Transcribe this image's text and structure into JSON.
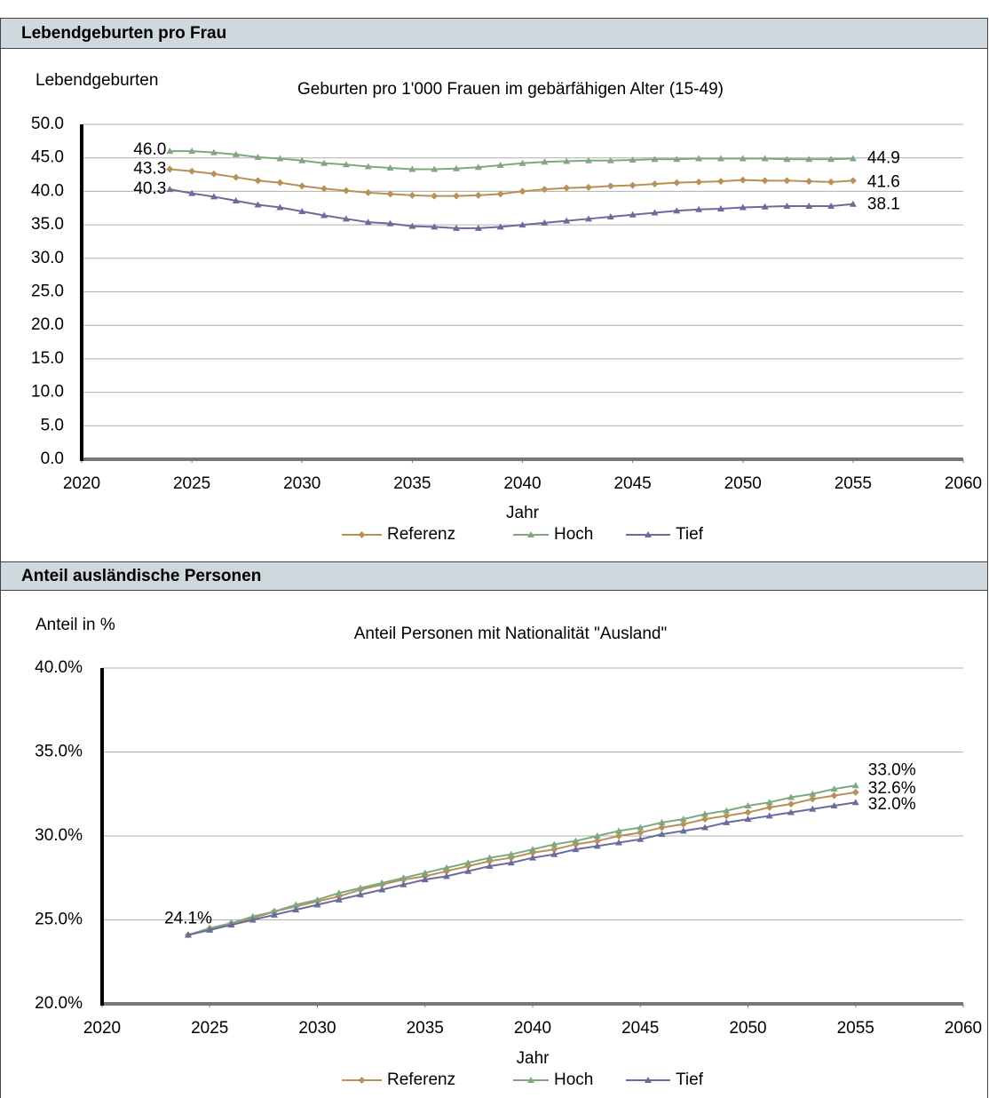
{
  "headers": [
    "Lebendgeburten pro Frau",
    "Anteil ausländische Personen"
  ],
  "chart_data": [
    {
      "type": "line",
      "title": "Geburten pro 1'000 Frauen im gebärfähigen Alter (15-49)",
      "y_label": "Lebendgeburten",
      "x_label": "Jahr",
      "x": [
        2024,
        2025,
        2026,
        2027,
        2028,
        2029,
        2030,
        2031,
        2032,
        2033,
        2034,
        2035,
        2036,
        2037,
        2038,
        2039,
        2040,
        2041,
        2042,
        2043,
        2044,
        2045,
        2046,
        2047,
        2048,
        2049,
        2050,
        2051,
        2052,
        2053,
        2054,
        2055
      ],
      "xlim": [
        2020,
        2060
      ],
      "xticks": [
        2020,
        2025,
        2030,
        2035,
        2040,
        2045,
        2050,
        2055,
        2060
      ],
      "ylim": [
        0,
        50
      ],
      "yticks": [
        {
          "value": 0,
          "label": "0.0"
        },
        {
          "value": 5,
          "label": "5.0"
        },
        {
          "value": 10,
          "label": "10.0"
        },
        {
          "value": 15,
          "label": "15.0"
        },
        {
          "value": 20,
          "label": "20.0"
        },
        {
          "value": 25,
          "label": "25.0"
        },
        {
          "value": 30,
          "label": "30.0"
        },
        {
          "value": 35,
          "label": "35.0"
        },
        {
          "value": 40,
          "label": "40.0"
        },
        {
          "value": 45,
          "label": "45.0"
        },
        {
          "value": 50,
          "label": "50.0"
        }
      ],
      "grid": true,
      "series": [
        {
          "name": "Referenz",
          "color": "#b8915a",
          "marker": "diamond",
          "values": [
            43.3,
            43.0,
            42.6,
            42.1,
            41.6,
            41.3,
            40.8,
            40.4,
            40.1,
            39.8,
            39.6,
            39.4,
            39.3,
            39.3,
            39.4,
            39.6,
            40.0,
            40.3,
            40.5,
            40.6,
            40.8,
            40.9,
            41.1,
            41.3,
            41.4,
            41.5,
            41.7,
            41.6,
            41.6,
            41.5,
            41.4,
            41.6
          ],
          "value_labels": [
            "43.3",
            null,
            null,
            null,
            null,
            null,
            null,
            null,
            null,
            null,
            null,
            null,
            null,
            null,
            null,
            null,
            null,
            null,
            null,
            null,
            null,
            null,
            null,
            null,
            null,
            null,
            null,
            null,
            null,
            null,
            null,
            "41.6"
          ]
        },
        {
          "name": "Hoch",
          "color": "#7fa87f",
          "marker": "triangle",
          "values": [
            46.0,
            46.0,
            45.8,
            45.5,
            45.1,
            44.9,
            44.6,
            44.2,
            44.0,
            43.7,
            43.5,
            43.3,
            43.3,
            43.4,
            43.6,
            43.9,
            44.2,
            44.4,
            44.5,
            44.6,
            44.6,
            44.7,
            44.8,
            44.8,
            44.9,
            44.9,
            44.9,
            44.9,
            44.8,
            44.8,
            44.8,
            44.9
          ],
          "value_labels": [
            "46.0",
            null,
            null,
            null,
            null,
            null,
            null,
            null,
            null,
            null,
            null,
            null,
            null,
            null,
            null,
            null,
            null,
            null,
            null,
            null,
            null,
            null,
            null,
            null,
            null,
            null,
            null,
            null,
            null,
            null,
            null,
            "44.9"
          ]
        },
        {
          "name": "Tief",
          "color": "#6b6b9c",
          "marker": "triangle",
          "values": [
            40.3,
            39.7,
            39.2,
            38.6,
            38.0,
            37.6,
            37.0,
            36.4,
            35.9,
            35.4,
            35.2,
            34.8,
            34.7,
            34.5,
            34.5,
            34.7,
            35.0,
            35.3,
            35.6,
            35.9,
            36.2,
            36.5,
            36.8,
            37.1,
            37.3,
            37.4,
            37.6,
            37.7,
            37.8,
            37.8,
            37.8,
            38.1
          ],
          "value_labels": [
            "40.3",
            null,
            null,
            null,
            null,
            null,
            null,
            null,
            null,
            null,
            null,
            null,
            null,
            null,
            null,
            null,
            null,
            null,
            null,
            null,
            null,
            null,
            null,
            null,
            null,
            null,
            null,
            null,
            null,
            null,
            null,
            "38.1"
          ]
        }
      ]
    },
    {
      "type": "line",
      "title": "Anteil Personen mit Nationalität \"Ausland\"",
      "y_label": "Anteil in %",
      "x_label": "Jahr",
      "x": [
        2024,
        2025,
        2026,
        2027,
        2028,
        2029,
        2030,
        2031,
        2032,
        2033,
        2034,
        2035,
        2036,
        2037,
        2038,
        2039,
        2040,
        2041,
        2042,
        2043,
        2044,
        2045,
        2046,
        2047,
        2048,
        2049,
        2050,
        2051,
        2052,
        2053,
        2054,
        2055
      ],
      "xlim": [
        2020,
        2060
      ],
      "xticks": [
        2020,
        2025,
        2030,
        2035,
        2040,
        2045,
        2050,
        2055,
        2060
      ],
      "ylim": [
        20,
        40
      ],
      "yticks": [
        {
          "value": 20,
          "label": "20.0%"
        },
        {
          "value": 25,
          "label": "25.0%"
        },
        {
          "value": 30,
          "label": "30.0%"
        },
        {
          "value": 35,
          "label": "35.0%"
        },
        {
          "value": 40,
          "label": "40.0%"
        }
      ],
      "grid": true,
      "series": [
        {
          "name": "Referenz",
          "color": "#b8915a",
          "marker": "diamond",
          "values": [
            24.1,
            24.5,
            24.8,
            25.1,
            25.5,
            25.8,
            26.1,
            26.4,
            26.8,
            27.1,
            27.4,
            27.6,
            27.9,
            28.2,
            28.5,
            28.7,
            29.0,
            29.2,
            29.5,
            29.7,
            30.0,
            30.2,
            30.5,
            30.7,
            31.0,
            31.2,
            31.4,
            31.7,
            31.9,
            32.2,
            32.4,
            32.6
          ],
          "value_labels": [
            "24.1%",
            null,
            null,
            null,
            null,
            null,
            null,
            null,
            null,
            null,
            null,
            null,
            null,
            null,
            null,
            null,
            null,
            null,
            null,
            null,
            null,
            null,
            null,
            null,
            null,
            null,
            null,
            null,
            null,
            null,
            null,
            "32.6%"
          ]
        },
        {
          "name": "Hoch",
          "color": "#7fa87f",
          "marker": "triangle",
          "values": [
            24.1,
            24.5,
            24.8,
            25.2,
            25.5,
            25.9,
            26.2,
            26.6,
            26.9,
            27.2,
            27.5,
            27.8,
            28.1,
            28.4,
            28.7,
            28.9,
            29.2,
            29.5,
            29.7,
            30.0,
            30.3,
            30.5,
            30.8,
            31.0,
            31.3,
            31.5,
            31.8,
            32.0,
            32.3,
            32.5,
            32.8,
            33.0
          ],
          "value_labels": [
            null,
            null,
            null,
            null,
            null,
            null,
            null,
            null,
            null,
            null,
            null,
            null,
            null,
            null,
            null,
            null,
            null,
            null,
            null,
            null,
            null,
            null,
            null,
            null,
            null,
            null,
            null,
            null,
            null,
            null,
            null,
            "33.0%"
          ]
        },
        {
          "name": "Tief",
          "color": "#6b6b9c",
          "marker": "triangle",
          "values": [
            24.1,
            24.4,
            24.7,
            25.0,
            25.3,
            25.6,
            25.9,
            26.2,
            26.5,
            26.8,
            27.1,
            27.4,
            27.6,
            27.9,
            28.2,
            28.4,
            28.7,
            28.9,
            29.2,
            29.4,
            29.6,
            29.8,
            30.1,
            30.3,
            30.5,
            30.8,
            31.0,
            31.2,
            31.4,
            31.6,
            31.8,
            32.0
          ],
          "value_labels": [
            null,
            null,
            null,
            null,
            null,
            null,
            null,
            null,
            null,
            null,
            null,
            null,
            null,
            null,
            null,
            null,
            null,
            null,
            null,
            null,
            null,
            null,
            null,
            null,
            null,
            null,
            null,
            null,
            null,
            null,
            null,
            "32.0%"
          ]
        }
      ]
    }
  ]
}
